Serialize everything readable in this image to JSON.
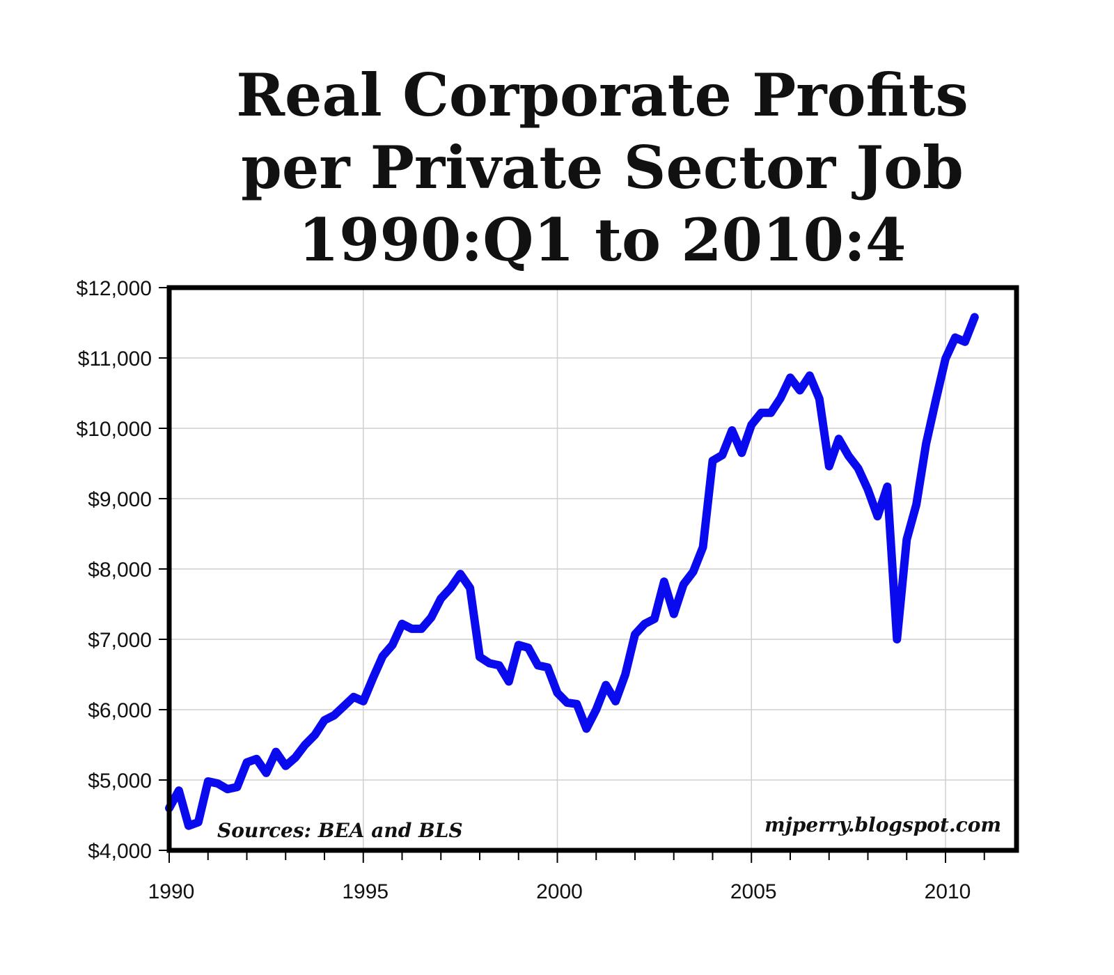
{
  "title_lines": [
    "Real Corporate Profits",
    "per Private Sector Job",
    "1990:Q1 to 2010:4"
  ],
  "sources_note": "Sources: BEA and BLS",
  "watermark": "mjperry.blogspot.com",
  "chart_data": {
    "type": "line",
    "title": "Real Corporate Profits per Private Sector Job 1990:Q1 to 2010:4",
    "xlabel": "",
    "ylabel": "",
    "xlim": [
      1990,
      2011.5
    ],
    "ylim": [
      4000,
      12000
    ],
    "grid": true,
    "x_ticks": [
      1990,
      1995,
      2000,
      2005,
      2010
    ],
    "y_ticks": [
      4000,
      5000,
      6000,
      7000,
      8000,
      9000,
      10000,
      11000,
      12000
    ],
    "y_tick_labels": [
      "$4,000",
      "$5,000",
      "$6,000",
      "$7,000",
      "$8,000",
      "$9,000",
      "$10,000",
      "$11,000",
      "$12,000"
    ],
    "line_color": "#0a0aee",
    "series": [
      {
        "x": [
          1990.0,
          1990.25,
          1990.5,
          1990.75,
          1991.0,
          1991.25,
          1991.5,
          1991.75,
          1992.0,
          1992.25,
          1992.5,
          1992.75,
          1993.0,
          1993.25,
          1993.5,
          1993.75,
          1994.0,
          1994.25,
          1994.5,
          1994.75,
          1995.0,
          1995.25,
          1995.5,
          1995.75,
          1996.0,
          1996.25,
          1996.5,
          1996.75,
          1997.0,
          1997.25,
          1997.5,
          1997.75,
          1998.0,
          1998.25,
          1998.5,
          1998.75,
          1999.0,
          1999.25,
          1999.5,
          1999.75,
          2000.0,
          2000.25,
          2000.5,
          2000.75,
          2001.0,
          2001.25,
          2001.5,
          2001.75,
          2002.0,
          2002.25,
          2002.5,
          2002.75,
          2003.0,
          2003.25,
          2003.5,
          2003.75,
          2004.0,
          2004.25,
          2004.5,
          2004.75,
          2005.0,
          2005.25,
          2005.5,
          2005.75,
          2006.0,
          2006.25,
          2006.5,
          2006.75,
          2007.0,
          2007.25,
          2007.5,
          2007.75,
          2008.0,
          2008.25,
          2008.5,
          2008.75,
          2009.0,
          2009.25,
          2009.5,
          2009.75,
          2010.0,
          2010.25,
          2010.5,
          2010.75
        ],
        "y": [
          4600,
          4850,
          4350,
          4400,
          4980,
          4950,
          4870,
          4900,
          5250,
          5300,
          5100,
          5400,
          5200,
          5320,
          5500,
          5640,
          5850,
          5920,
          6050,
          6180,
          6120,
          6450,
          6760,
          6920,
          7220,
          7150,
          7150,
          7310,
          7580,
          7730,
          7930,
          7730,
          6750,
          6660,
          6630,
          6400,
          6920,
          6880,
          6630,
          6600,
          6240,
          6100,
          6080,
          5730,
          6000,
          6350,
          6120,
          6500,
          7070,
          7220,
          7290,
          7820,
          7360,
          7780,
          7960,
          8310,
          9540,
          9620,
          9970,
          9650,
          10050,
          10220,
          10220,
          10430,
          10720,
          10540,
          10750,
          10420,
          9460,
          9850,
          9610,
          9430,
          9130,
          8750,
          9170,
          7000,
          8420,
          8920,
          9780,
          10400,
          10990,
          11290,
          11230,
          11580
        ]
      }
    ]
  }
}
